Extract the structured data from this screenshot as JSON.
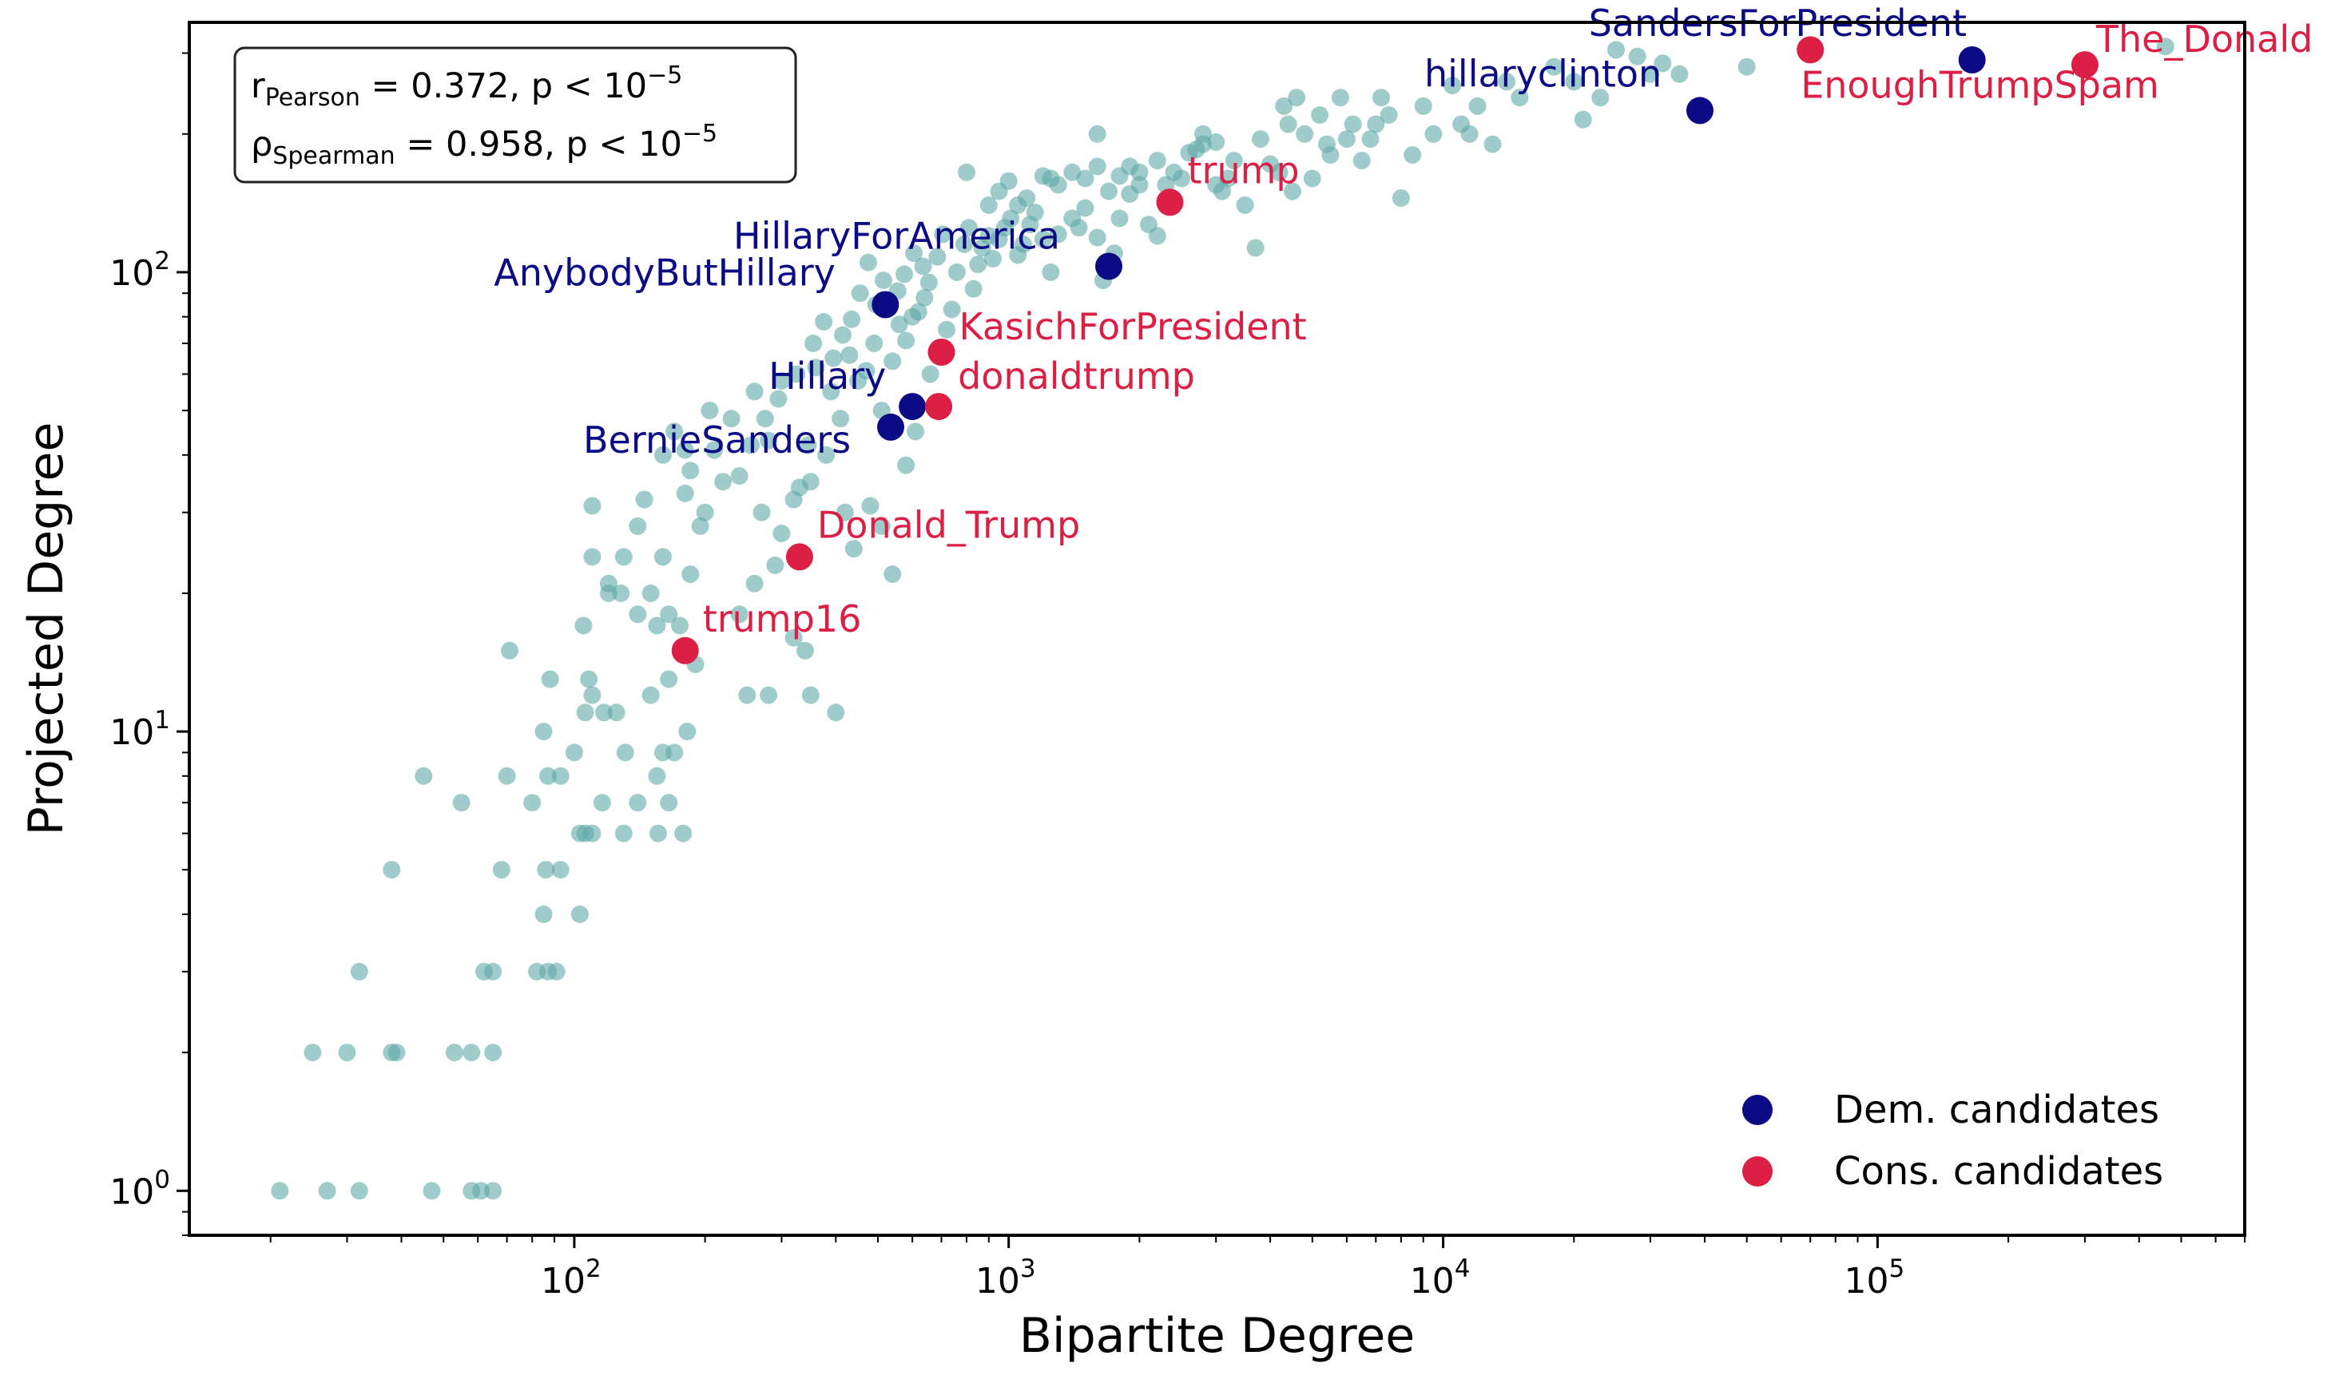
{
  "chart_data": {
    "type": "scatter",
    "x_scale": "log",
    "y_scale": "log",
    "xlim": [
      13,
      700000
    ],
    "ylim": [
      0.8,
      350
    ],
    "xlabel": "Bipartite Degree",
    "ylabel": "Projected Degree",
    "x_ticks": [
      {
        "value": 100,
        "base": "10",
        "exp": "2"
      },
      {
        "value": 1000,
        "base": "10",
        "exp": "3"
      },
      {
        "value": 10000,
        "base": "10",
        "exp": "4"
      },
      {
        "value": 100000,
        "base": "10",
        "exp": "5"
      }
    ],
    "y_ticks": [
      {
        "value": 1,
        "base": "10",
        "exp": "0"
      },
      {
        "value": 10,
        "base": "10",
        "exp": "1"
      },
      {
        "value": 100,
        "base": "10",
        "exp": "2"
      }
    ],
    "stats": {
      "pearson": {
        "symbol": "r",
        "sub": "Pearson",
        "value": " = 0.372, p < 10",
        "exp": "−5"
      },
      "spearman": {
        "symbol": "ρ",
        "sub": "Spearman",
        "value": " = 0.958, p < 10",
        "exp": "−5"
      }
    },
    "colors": {
      "background_points": "#5fa8a8",
      "dem": "#0b0b85",
      "cons": "#dc1f45"
    },
    "legend": [
      {
        "label": "Dem. candidates",
        "group": "dem"
      },
      {
        "label": "Cons. candidates",
        "group": "cons"
      }
    ],
    "highlighted": [
      {
        "name": "SandersForPresident",
        "group": "dem",
        "x": 165000,
        "y": 290
      },
      {
        "name": "hillaryclinton",
        "group": "dem",
        "x": 39000,
        "y": 225
      },
      {
        "name": "HillaryForAmerica",
        "group": "dem",
        "x": 1700,
        "y": 103
      },
      {
        "name": "AnybodyButHillary",
        "group": "dem",
        "x": 520,
        "y": 85
      },
      {
        "name": "Hillary",
        "group": "dem",
        "x": 600,
        "y": 51
      },
      {
        "name": "BernieSanders",
        "group": "dem",
        "x": 535,
        "y": 46
      },
      {
        "name": "The_Donald",
        "group": "cons",
        "x": 300000,
        "y": 283
      },
      {
        "name": "EnoughTrumpSpam",
        "group": "cons",
        "x": 70000,
        "y": 305
      },
      {
        "name": "trump",
        "group": "cons",
        "x": 2350,
        "y": 142
      },
      {
        "name": "KasichForPresident",
        "group": "cons",
        "x": 700,
        "y": 67
      },
      {
        "name": "donaldtrump",
        "group": "cons",
        "x": 690,
        "y": 51
      },
      {
        "name": "Donald_Trump",
        "group": "cons",
        "x": 330,
        "y": 24
      },
      {
        "name": "trump16",
        "group": "cons",
        "x": 180,
        "y": 15
      }
    ],
    "points": [
      [
        21,
        1
      ],
      [
        27,
        1
      ],
      [
        32,
        1
      ],
      [
        47,
        1
      ],
      [
        58,
        1
      ],
      [
        61,
        1
      ],
      [
        65,
        1
      ],
      [
        25,
        2
      ],
      [
        30,
        2
      ],
      [
        38,
        2
      ],
      [
        39,
        2
      ],
      [
        53,
        2
      ],
      [
        58,
        2
      ],
      [
        65,
        2
      ],
      [
        32,
        3
      ],
      [
        62,
        3
      ],
      [
        65,
        3
      ],
      [
        82,
        3
      ],
      [
        87,
        3
      ],
      [
        91,
        3
      ],
      [
        85,
        4
      ],
      [
        103,
        4
      ],
      [
        68,
        5
      ],
      [
        86,
        5
      ],
      [
        93,
        5
      ],
      [
        38,
        5
      ],
      [
        80,
        7
      ],
      [
        87,
        8
      ],
      [
        93,
        8
      ],
      [
        103,
        6
      ],
      [
        106,
        6
      ],
      [
        110,
        6
      ],
      [
        116,
        7
      ],
      [
        130,
        6
      ],
      [
        140,
        7
      ],
      [
        156,
        6
      ],
      [
        165,
        7
      ],
      [
        178,
        6
      ],
      [
        125,
        11
      ],
      [
        131,
        9
      ],
      [
        155,
        8
      ],
      [
        160,
        9
      ],
      [
        170,
        9
      ],
      [
        55,
        7
      ],
      [
        70,
        8
      ],
      [
        45,
        8
      ],
      [
        85,
        10
      ],
      [
        100,
        9
      ],
      [
        106,
        11
      ],
      [
        110,
        12
      ],
      [
        117,
        11
      ],
      [
        150,
        12
      ],
      [
        165,
        13
      ],
      [
        182,
        10
      ],
      [
        190,
        14
      ],
      [
        250,
        12
      ],
      [
        280,
        12
      ],
      [
        320,
        16
      ],
      [
        340,
        15
      ],
      [
        350,
        12
      ],
      [
        400,
        11
      ],
      [
        120,
        20
      ],
      [
        88,
        13
      ],
      [
        108,
        13
      ],
      [
        71,
        15
      ],
      [
        105,
        17
      ],
      [
        110,
        24
      ],
      [
        120,
        21
      ],
      [
        128,
        20
      ],
      [
        140,
        18
      ],
      [
        150,
        20
      ],
      [
        155,
        17
      ],
      [
        160,
        24
      ],
      [
        165,
        18
      ],
      [
        175,
        17
      ],
      [
        180,
        15
      ],
      [
        185,
        22
      ],
      [
        200,
        30
      ],
      [
        220,
        35
      ],
      [
        240,
        18
      ],
      [
        260,
        21
      ],
      [
        270,
        30
      ],
      [
        290,
        23
      ],
      [
        300,
        27
      ],
      [
        320,
        32
      ],
      [
        350,
        35
      ],
      [
        380,
        40
      ],
      [
        420,
        30
      ],
      [
        440,
        25
      ],
      [
        480,
        31
      ],
      [
        510,
        28
      ],
      [
        540,
        22
      ],
      [
        580,
        38
      ],
      [
        610,
        45
      ],
      [
        110,
        31
      ],
      [
        130,
        24
      ],
      [
        140,
        28
      ],
      [
        145,
        32
      ],
      [
        160,
        40
      ],
      [
        170,
        45
      ],
      [
        180,
        33
      ],
      [
        185,
        37
      ],
      [
        195,
        28
      ],
      [
        210,
        41
      ],
      [
        230,
        48
      ],
      [
        240,
        36
      ],
      [
        260,
        55
      ],
      [
        280,
        43
      ],
      [
        300,
        58
      ],
      [
        330,
        34
      ],
      [
        345,
        42
      ],
      [
        360,
        62
      ],
      [
        390,
        55
      ],
      [
        410,
        48
      ],
      [
        430,
        66
      ],
      [
        450,
        58
      ],
      [
        470,
        61
      ],
      [
        490,
        70
      ],
      [
        510,
        50
      ],
      [
        540,
        64
      ],
      [
        560,
        77
      ],
      [
        580,
        71
      ],
      [
        600,
        80
      ],
      [
        620,
        82
      ],
      [
        640,
        88
      ],
      [
        660,
        60
      ],
      [
        680,
        52
      ],
      [
        700,
        67
      ],
      [
        720,
        75
      ],
      [
        180,
        41
      ],
      [
        205,
        50
      ],
      [
        255,
        42
      ],
      [
        275,
        48
      ],
      [
        295,
        53
      ],
      [
        325,
        60
      ],
      [
        355,
        70
      ],
      [
        375,
        78
      ],
      [
        395,
        65
      ],
      [
        415,
        73
      ],
      [
        435,
        79
      ],
      [
        455,
        90
      ],
      [
        475,
        105
      ],
      [
        495,
        85
      ],
      [
        515,
        96
      ],
      [
        555,
        91
      ],
      [
        575,
        99
      ],
      [
        605,
        110
      ],
      [
        635,
        103
      ],
      [
        655,
        95
      ],
      [
        685,
        108
      ],
      [
        705,
        121
      ],
      [
        740,
        83
      ],
      [
        760,
        100
      ],
      [
        790,
        115
      ],
      [
        810,
        125
      ],
      [
        830,
        92
      ],
      [
        850,
        104
      ],
      [
        870,
        113
      ],
      [
        900,
        120
      ],
      [
        920,
        107
      ],
      [
        950,
        118
      ],
      [
        980,
        125
      ],
      [
        1010,
        131
      ],
      [
        1050,
        109
      ],
      [
        1080,
        115
      ],
      [
        1120,
        127
      ],
      [
        1150,
        135
      ],
      [
        1200,
        118
      ],
      [
        1250,
        100
      ],
      [
        1300,
        121
      ],
      [
        1400,
        131
      ],
      [
        1450,
        125
      ],
      [
        1500,
        138
      ],
      [
        1600,
        119
      ],
      [
        1650,
        96
      ],
      [
        1750,
        110
      ],
      [
        1800,
        131
      ],
      [
        1900,
        148
      ],
      [
        2000,
        155
      ],
      [
        2100,
        127
      ],
      [
        2200,
        120
      ],
      [
        2400,
        165
      ],
      [
        2600,
        182
      ],
      [
        2800,
        200
      ],
      [
        3000,
        192
      ],
      [
        3100,
        150
      ],
      [
        3200,
        160
      ],
      [
        800,
        165
      ],
      [
        900,
        140
      ],
      [
        950,
        150
      ],
      [
        1000,
        158
      ],
      [
        1100,
        145
      ],
      [
        1200,
        162
      ],
      [
        1300,
        155
      ],
      [
        1400,
        165
      ],
      [
        1500,
        160
      ],
      [
        1600,
        170
      ],
      [
        1700,
        150
      ],
      [
        1800,
        162
      ],
      [
        1900,
        170
      ],
      [
        2000,
        165
      ],
      [
        2200,
        175
      ],
      [
        2500,
        160
      ],
      [
        2800,
        190
      ],
      [
        3000,
        155
      ],
      [
        3500,
        140
      ],
      [
        3800,
        195
      ],
      [
        4000,
        172
      ],
      [
        4200,
        165
      ],
      [
        4500,
        150
      ],
      [
        5000,
        160
      ],
      [
        5500,
        180
      ],
      [
        6000,
        195
      ],
      [
        6500,
        175
      ],
      [
        7000,
        210
      ],
      [
        8000,
        145
      ],
      [
        3700,
        113
      ],
      [
        4300,
        230
      ],
      [
        4600,
        240
      ],
      [
        4800,
        200
      ],
      [
        5200,
        220
      ],
      [
        5800,
        240
      ],
      [
        6200,
        210
      ],
      [
        6800,
        195
      ],
      [
        7500,
        220
      ],
      [
        8500,
        180
      ],
      [
        9000,
        230
      ],
      [
        9500,
        200
      ],
      [
        10500,
        255
      ],
      [
        11000,
        210
      ],
      [
        11500,
        200
      ],
      [
        12000,
        230
      ],
      [
        13000,
        190
      ],
      [
        14000,
        260
      ],
      [
        15000,
        240
      ],
      [
        18000,
        280
      ],
      [
        20000,
        260
      ],
      [
        21000,
        215
      ],
      [
        23000,
        240
      ],
      [
        25000,
        305
      ],
      [
        28000,
        295
      ],
      [
        30000,
        270
      ],
      [
        32000,
        285
      ],
      [
        35000,
        270
      ],
      [
        50000,
        280
      ],
      [
        460000,
        310
      ],
      [
        3300,
        175
      ],
      [
        2700,
        185
      ],
      [
        2300,
        155
      ],
      [
        1250,
        160
      ],
      [
        1050,
        140
      ],
      [
        1600,
        200
      ],
      [
        7200,
        240
      ],
      [
        4400,
        210
      ],
      [
        5400,
        190
      ]
    ]
  }
}
